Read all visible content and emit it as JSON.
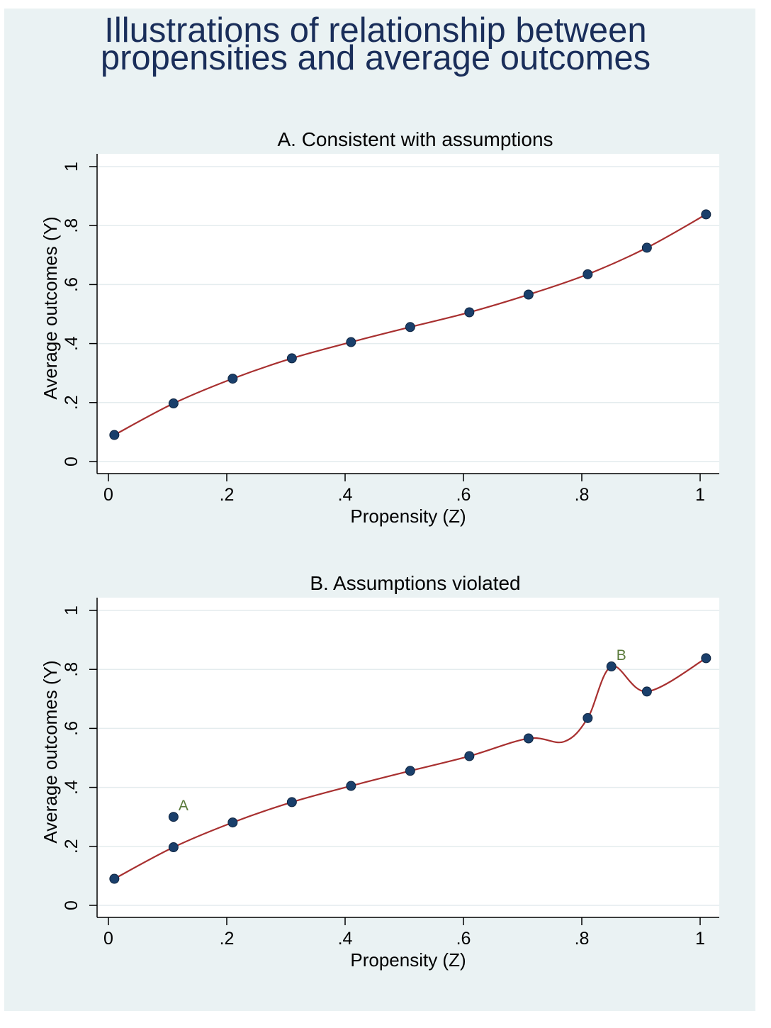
{
  "page": {
    "title_line1": "Illustrations of relationship between",
    "title_line2": "propensities and average outcomes"
  },
  "colors": {
    "background": "#eaf2f3",
    "plot_bg": "#ffffff",
    "point": "#1a3f6b",
    "line": "#a83030",
    "title": "#1a2e5a",
    "annotation": "#5a7a3a"
  },
  "chart_data": [
    {
      "type": "scatter",
      "title": "A. Consistent with assumptions",
      "xlabel": "Propensity (Z)",
      "ylabel": "Average outcomes (Y)",
      "xlim": [
        0,
        1
      ],
      "ylim": [
        0,
        1
      ],
      "xticks": [
        "0",
        ".2",
        ".4",
        ".6",
        ".8",
        "1"
      ],
      "yticks": [
        "0",
        ".2",
        ".4",
        ".6",
        ".8",
        "1"
      ],
      "grid": true,
      "points": [
        {
          "x": 0.01,
          "y": 0.09
        },
        {
          "x": 0.11,
          "y": 0.197
        },
        {
          "x": 0.21,
          "y": 0.281
        },
        {
          "x": 0.31,
          "y": 0.35
        },
        {
          "x": 0.41,
          "y": 0.405
        },
        {
          "x": 0.51,
          "y": 0.456
        },
        {
          "x": 0.61,
          "y": 0.506
        },
        {
          "x": 0.71,
          "y": 0.566
        },
        {
          "x": 0.81,
          "y": 0.635
        },
        {
          "x": 0.91,
          "y": 0.725
        },
        {
          "x": 1.01,
          "y": 0.838
        }
      ],
      "fit_line": [
        {
          "x": 0.01,
          "y": 0.09
        },
        {
          "x": 0.11,
          "y": 0.197
        },
        {
          "x": 0.21,
          "y": 0.281
        },
        {
          "x": 0.31,
          "y": 0.35
        },
        {
          "x": 0.41,
          "y": 0.405
        },
        {
          "x": 0.51,
          "y": 0.456
        },
        {
          "x": 0.61,
          "y": 0.506
        },
        {
          "x": 0.71,
          "y": 0.566
        },
        {
          "x": 0.81,
          "y": 0.635
        },
        {
          "x": 0.91,
          "y": 0.725
        },
        {
          "x": 1.01,
          "y": 0.838
        }
      ],
      "annotations": []
    },
    {
      "type": "scatter",
      "title": "B. Assumptions violated",
      "xlabel": "Propensity (Z)",
      "ylabel": "Average outcomes (Y)",
      "xlim": [
        0,
        1
      ],
      "ylim": [
        0,
        1
      ],
      "xticks": [
        "0",
        ".2",
        ".4",
        ".6",
        ".8",
        "1"
      ],
      "yticks": [
        "0",
        ".2",
        ".4",
        ".6",
        ".8",
        "1"
      ],
      "grid": true,
      "points": [
        {
          "x": 0.01,
          "y": 0.09
        },
        {
          "x": 0.11,
          "y": 0.197
        },
        {
          "x": 0.11,
          "y": 0.3
        },
        {
          "x": 0.21,
          "y": 0.281
        },
        {
          "x": 0.31,
          "y": 0.35
        },
        {
          "x": 0.41,
          "y": 0.405
        },
        {
          "x": 0.51,
          "y": 0.456
        },
        {
          "x": 0.61,
          "y": 0.506
        },
        {
          "x": 0.71,
          "y": 0.566
        },
        {
          "x": 0.81,
          "y": 0.635
        },
        {
          "x": 0.85,
          "y": 0.81
        },
        {
          "x": 0.91,
          "y": 0.725
        },
        {
          "x": 1.01,
          "y": 0.838
        }
      ],
      "fit_line": [
        {
          "x": 0.01,
          "y": 0.09
        },
        {
          "x": 0.11,
          "y": 0.197
        },
        {
          "x": 0.21,
          "y": 0.281
        },
        {
          "x": 0.31,
          "y": 0.35
        },
        {
          "x": 0.41,
          "y": 0.405
        },
        {
          "x": 0.51,
          "y": 0.456
        },
        {
          "x": 0.61,
          "y": 0.506
        },
        {
          "x": 0.71,
          "y": 0.566
        },
        {
          "x": 0.77,
          "y": 0.555
        },
        {
          "x": 0.81,
          "y": 0.635
        },
        {
          "x": 0.85,
          "y": 0.81
        },
        {
          "x": 0.91,
          "y": 0.725
        },
        {
          "x": 1.01,
          "y": 0.838
        }
      ],
      "annotations": [
        {
          "text": "A",
          "x": 0.11,
          "y": 0.3
        },
        {
          "text": "B",
          "x": 0.85,
          "y": 0.81
        }
      ]
    }
  ]
}
